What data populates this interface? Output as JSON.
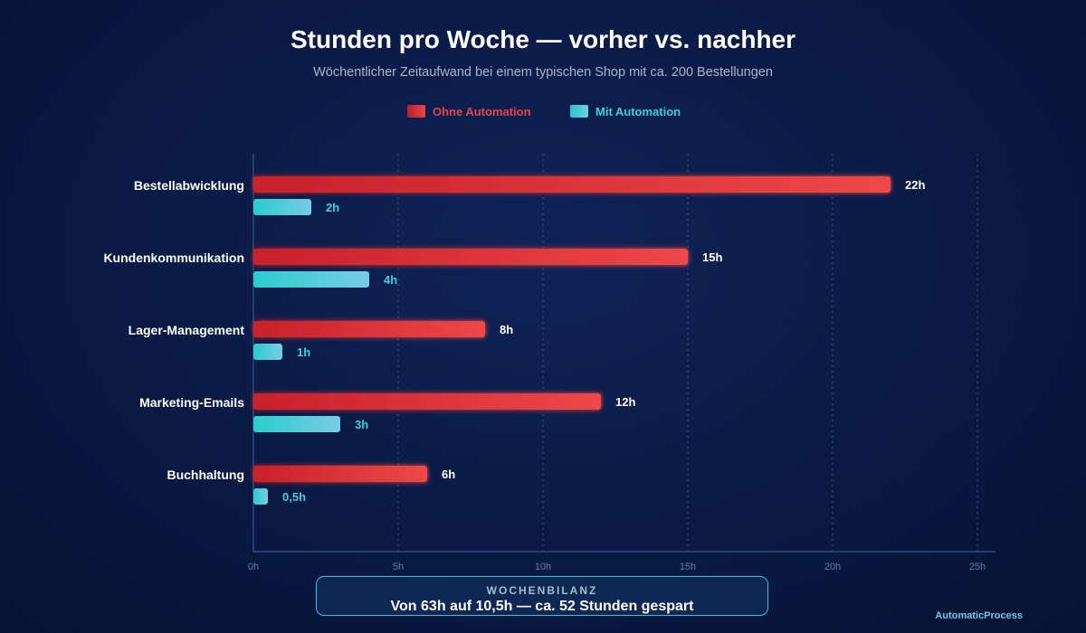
{
  "header": {
    "title": "Stunden pro Woche — vorher vs. nachher",
    "subtitle": "Wöchentlicher Zeitaufwand bei einem typischen Shop mit ca. 200 Bestellungen"
  },
  "legend": {
    "items": [
      {
        "label": "Ohne Automation",
        "color": "#e84545"
      },
      {
        "label": "Mit Automation",
        "color": "#3dd0d6"
      }
    ]
  },
  "chart_data": {
    "type": "bar",
    "orientation": "horizontal",
    "title": "Stunden pro Woche — vorher vs. nachher",
    "subtitle": "Wöchentlicher Zeitaufwand bei einem typischen Shop mit ca. 200 Bestellungen",
    "categories": [
      "Bestellabwicklung",
      "Kundenkommunikation",
      "Lager-Management",
      "Marketing-Emails",
      "Buchhaltung"
    ],
    "series": [
      {
        "name": "Ohne Automation",
        "color": "#e84545",
        "values": [
          22,
          15,
          8,
          12,
          6
        ],
        "labels": [
          "22h",
          "15h",
          "8h",
          "12h",
          "6h"
        ]
      },
      {
        "name": "Mit Automation",
        "color": "#3dd0d6",
        "values": [
          2,
          4,
          1,
          3,
          0.5
        ],
        "labels": [
          "2h",
          "4h",
          "1h",
          "3h",
          "0,5h"
        ]
      }
    ],
    "xlim": [
      0,
      25
    ],
    "x_ticks": [
      0,
      5,
      10,
      15,
      20,
      25
    ],
    "x_tick_labels": [
      "0h",
      "5h",
      "10h",
      "15h",
      "20h",
      "25h"
    ],
    "grid": "vertical dotted",
    "legend_position": "top-center"
  },
  "summary": {
    "label": "WOCHENBILANZ",
    "text": "Von 63h auf 10,5h — ca. 52 Stunden gespart"
  },
  "brand": "AutomaticProcess"
}
